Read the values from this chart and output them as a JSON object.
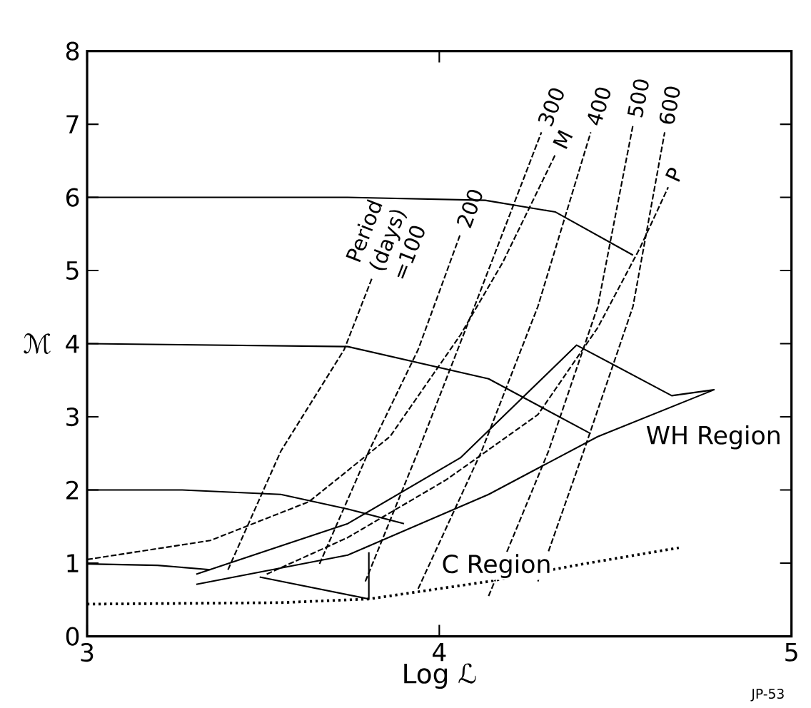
{
  "chart_data": {
    "type": "line",
    "xlabel": "Log ℒ",
    "ylabel": "ℳ",
    "xlim": [
      3,
      5
    ],
    "ylim": [
      0,
      8
    ],
    "xticks": [
      3,
      4,
      5
    ],
    "yticks": [
      0,
      1,
      2,
      3,
      4,
      5,
      6,
      7,
      8
    ],
    "grid": false,
    "marker": "none",
    "series": [
      {
        "color": "#000000",
        "line_style": "solid",
        "x": [
          3,
          3.74,
          4.13,
          4.33,
          4.55
        ],
        "values": [
          6.0,
          6.0,
          5.96,
          5.8,
          5.21
        ]
      },
      {
        "color": "#000000",
        "line_style": "solid",
        "x": [
          3,
          3.74,
          4.14,
          4.43
        ],
        "values": [
          4.0,
          3.96,
          3.52,
          2.77
        ]
      },
      {
        "color": "#000000",
        "line_style": "solid",
        "x": [
          3,
          3.27,
          3.55,
          3.74,
          3.9
        ],
        "values": [
          2.0,
          2.0,
          1.94,
          1.74,
          1.54
        ]
      },
      {
        "color": "#000000",
        "line_style": "solid",
        "x": [
          3,
          3.2,
          3.35
        ],
        "values": [
          0.99,
          0.97,
          0.91
        ]
      },
      {
        "name": "Period (days) =100",
        "color": "#000000",
        "line_style": "dashed",
        "x": [
          3.4,
          3.55,
          3.73,
          3.81
        ],
        "values": [
          0.91,
          2.53,
          3.92,
          4.91
        ]
      },
      {
        "name": "200",
        "color": "#000000",
        "line_style": "dashed",
        "x": [
          3.66,
          3.8,
          3.94,
          4.06
        ],
        "values": [
          0.99,
          2.53,
          3.92,
          5.5
        ]
      },
      {
        "name": "300",
        "color": "#000000",
        "line_style": "dashed",
        "x": [
          3.79,
          3.94,
          4.1,
          4.29
        ],
        "values": [
          0.75,
          2.53,
          4.51,
          6.89
        ]
      },
      {
        "name": "400",
        "color": "#000000",
        "line_style": "dashed",
        "x": [
          3.94,
          4.12,
          4.28,
          4.43
        ],
        "values": [
          0.65,
          2.53,
          4.51,
          6.89
        ]
      },
      {
        "name": "500",
        "color": "#000000",
        "line_style": "dashed",
        "x": [
          4.14,
          4.31,
          4.45,
          4.55
        ],
        "values": [
          0.55,
          2.53,
          4.51,
          6.99
        ]
      },
      {
        "name": "600",
        "color": "#000000",
        "line_style": "dashed",
        "x": [
          4.28,
          4.41,
          4.55,
          4.64
        ],
        "values": [
          0.75,
          2.53,
          4.51,
          6.89
        ]
      },
      {
        "name": "M",
        "color": "#000000",
        "line_style": "dashed",
        "x": [
          3,
          3.35,
          3.63,
          3.86,
          4.06,
          4.18,
          4.33
        ],
        "values": [
          1.05,
          1.31,
          1.84,
          2.73,
          4.12,
          5.11,
          6.59
        ]
      },
      {
        "name": "P",
        "color": "#000000",
        "line_style": "dashed",
        "x": [
          3.51,
          3.74,
          4.02,
          4.28,
          4.45,
          4.57,
          4.65
        ],
        "values": [
          0.85,
          1.35,
          2.14,
          3.03,
          4.22,
          5.31,
          6.14
        ]
      },
      {
        "color": "#000000",
        "line_style": "solid",
        "x": [
          3.31,
          3.74,
          4.06,
          4.39,
          4.66,
          4.78,
          4.45,
          4.14,
          3.74,
          3.31
        ],
        "values": [
          0.85,
          1.54,
          2.44,
          3.98,
          3.29,
          3.37,
          2.73,
          1.94,
          1.11,
          0.71
        ]
      },
      {
        "color": "#000000",
        "line_style": "solid",
        "x": [
          3.49,
          3.8,
          3.8
        ],
        "values": [
          0.81,
          0.51,
          1.15
        ]
      },
      {
        "color": "#000000",
        "line_style": "dotted",
        "x": [
          3,
          3.55,
          3.8,
          4.14,
          4.41,
          4.68
        ],
        "values": [
          0.44,
          0.46,
          0.51,
          0.75,
          0.99,
          1.21
        ]
      }
    ],
    "annotations": [
      "WH Region",
      "C Region",
      "JP-53"
    ]
  }
}
